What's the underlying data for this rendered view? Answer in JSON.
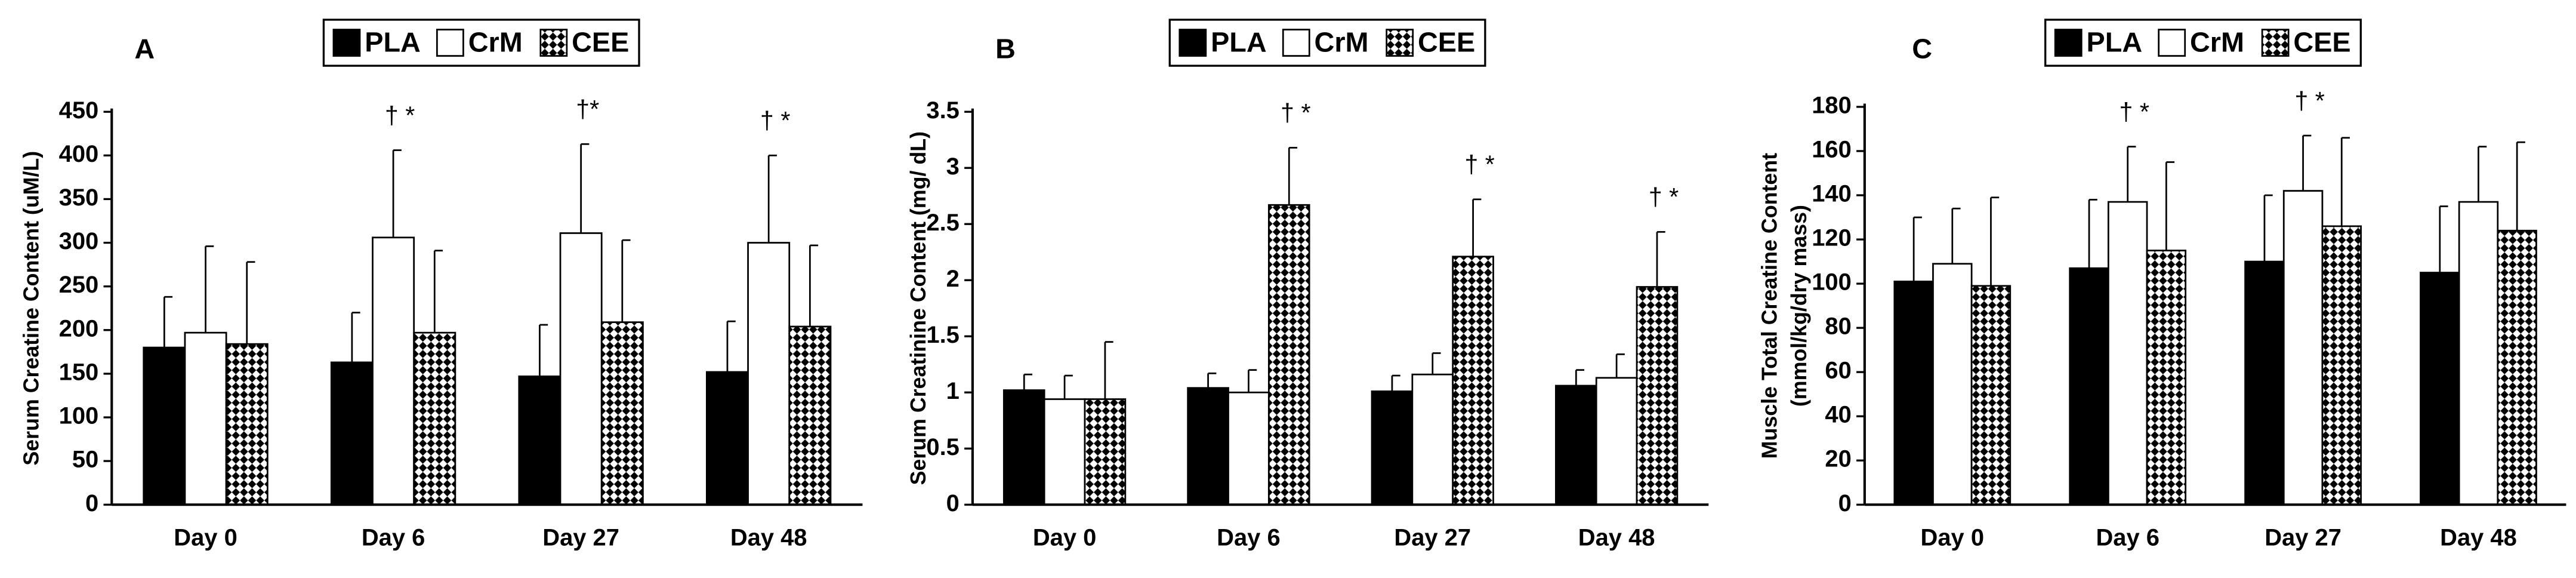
{
  "chart_data": [
    {
      "type": "bar",
      "panel_label": "A",
      "ylabel": "Serum Creatine Content (uM/L)",
      "categories": [
        "Day 0",
        "Day 6",
        "Day 27",
        "Day 48"
      ],
      "series": [
        {
          "name": "PLA",
          "color": "#000000",
          "values": [
            180,
            163,
            147,
            152
          ],
          "errors": [
            58,
            57,
            59,
            58
          ]
        },
        {
          "name": "CrM",
          "color": "#ffffff",
          "values": [
            197,
            306,
            311,
            300
          ],
          "errors": [
            99,
            100,
            102,
            100
          ],
          "annotations": [
            null,
            "† *",
            "†*",
            "† *"
          ]
        },
        {
          "name": "CEE",
          "color": "#000000",
          "pattern": "diamond",
          "values": [
            184,
            197,
            209,
            204
          ],
          "errors": [
            94,
            94,
            94,
            93
          ]
        }
      ],
      "ylim": [
        0,
        450
      ],
      "yticks": [
        0,
        50,
        100,
        150,
        200,
        250,
        300,
        350,
        400,
        450
      ]
    },
    {
      "type": "bar",
      "panel_label": "B",
      "ylabel": "Serum Creatinine Content (mg/ dL)",
      "categories": [
        "Day 0",
        "Day 6",
        "Day 27",
        "Day 48"
      ],
      "series": [
        {
          "name": "PLA",
          "color": "#000000",
          "values": [
            1.02,
            1.04,
            1.01,
            1.06
          ],
          "errors": [
            0.14,
            0.13,
            0.14,
            0.14
          ]
        },
        {
          "name": "CrM",
          "color": "#ffffff",
          "values": [
            0.94,
            1.0,
            1.16,
            1.13
          ],
          "errors": [
            0.21,
            0.2,
            0.19,
            0.21
          ]
        },
        {
          "name": "CEE",
          "color": "#000000",
          "pattern": "diamond",
          "values": [
            0.94,
            2.67,
            2.21,
            1.94
          ],
          "errors": [
            0.51,
            0.51,
            0.51,
            0.49
          ],
          "annotations": [
            null,
            "† *",
            "† *",
            "† *"
          ]
        }
      ],
      "ylim": [
        0,
        3.5
      ],
      "yticks": [
        0,
        0.5,
        1,
        1.5,
        2,
        2.5,
        3,
        3.5
      ]
    },
    {
      "type": "bar",
      "panel_label": "C",
      "ylabel": [
        "Muscle Total Creatine Content",
        "(mmol/kg/dry mass)"
      ],
      "categories": [
        "Day 0",
        "Day 6",
        "Day 27",
        "Day 48"
      ],
      "series": [
        {
          "name": "PLA",
          "color": "#000000",
          "values": [
            101,
            107,
            110,
            105
          ],
          "errors": [
            29,
            31,
            30,
            30
          ]
        },
        {
          "name": "CrM",
          "color": "#ffffff",
          "values": [
            109,
            137,
            142,
            137
          ],
          "errors": [
            25,
            25,
            25,
            25
          ],
          "annotations": [
            null,
            "† *",
            "† *",
            null
          ]
        },
        {
          "name": "CEE",
          "color": "#000000",
          "pattern": "diamond",
          "values": [
            99,
            115,
            126,
            124
          ],
          "errors": [
            40,
            40,
            40,
            40
          ]
        }
      ],
      "ylim": [
        0,
        180
      ],
      "yticks": [
        0,
        20,
        40,
        60,
        80,
        100,
        120,
        140,
        160,
        180
      ]
    }
  ]
}
